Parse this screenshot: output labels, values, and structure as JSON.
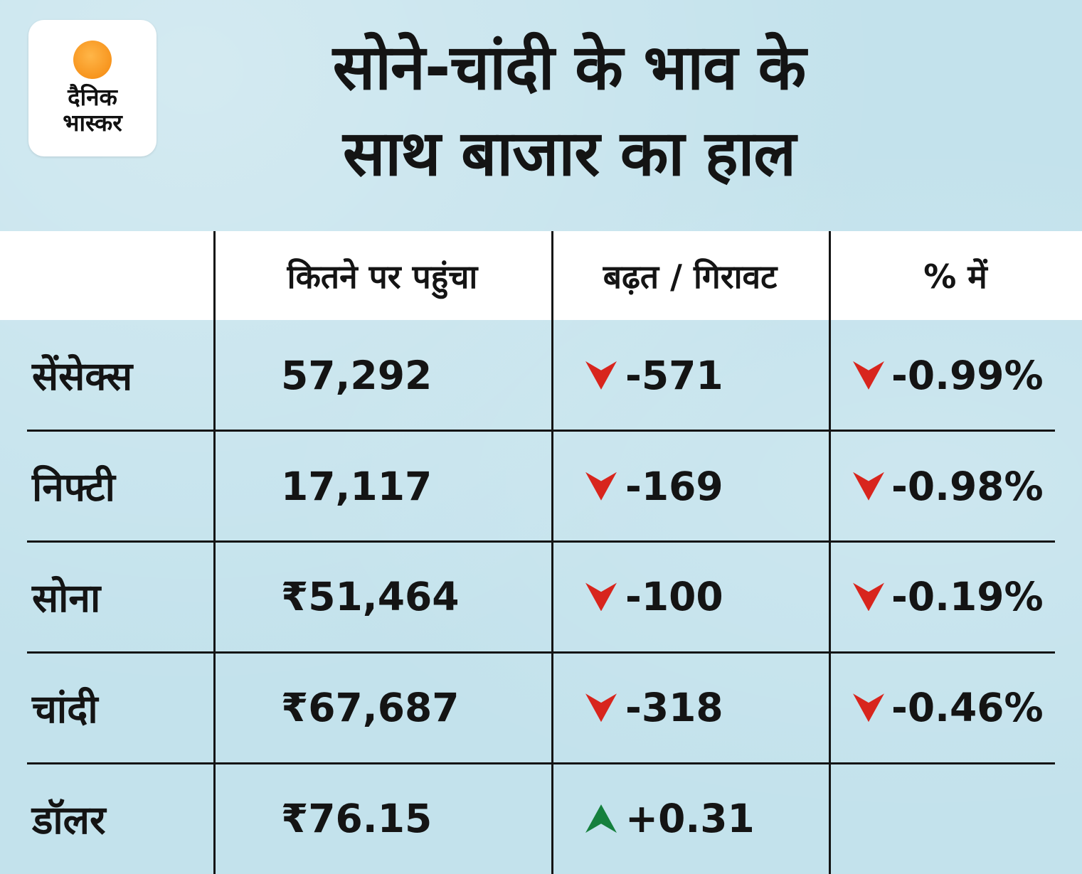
{
  "colors": {
    "bg": "#c3e2ec",
    "band": "#ffffff",
    "ink": "#141414",
    "red": "#d8251d",
    "green": "#15803d",
    "logo-orange": "#f7941d"
  },
  "logo": {
    "line1": "दैनिक",
    "line2": "भास्कर"
  },
  "title": {
    "line1": "सोने-चांदी के भाव के",
    "line2": "साथ बाजार का हाल"
  },
  "table": {
    "headers": [
      "",
      "कितने पर पहुंचा",
      "बढ़त / गिरावट",
      "% में"
    ],
    "rows": [
      {
        "label": "सेंसेक्स",
        "value": "57,292",
        "change": "-571",
        "change_dir": "down",
        "pct": "-0.99%",
        "pct_dir": "down"
      },
      {
        "label": "निफ्टी",
        "value": "17,117",
        "change": "-169",
        "change_dir": "down",
        "pct": "-0.98%",
        "pct_dir": "down"
      },
      {
        "label": "सोना",
        "value": "₹51,464",
        "change": "-100",
        "change_dir": "down",
        "pct": "-0.19%",
        "pct_dir": "down"
      },
      {
        "label": "चांदी",
        "value": "₹67,687",
        "change": "-318",
        "change_dir": "down",
        "pct": "-0.46%",
        "pct_dir": "down"
      },
      {
        "label": "डॉलर",
        "value": "₹76.15",
        "change": "+0.31",
        "change_dir": "up",
        "pct": "",
        "pct_dir": ""
      }
    ]
  },
  "chart_data": {
    "type": "table",
    "title": "सोने-चांदी के भाव के साथ बाजार का हाल",
    "columns": [
      "",
      "कितने पर पहुंचा",
      "बढ़त / गिरावट",
      "% में"
    ],
    "rows": [
      [
        "सेंसेक्स",
        "57,292",
        "▼ -571",
        "▼ -0.99%"
      ],
      [
        "निफ्टी",
        "17,117",
        "▼ -169",
        "▼ -0.98%"
      ],
      [
        "सोना",
        "₹51,464",
        "▼ -100",
        "▼ -0.19%"
      ],
      [
        "चांदी",
        "₹67,687",
        "▼ -318",
        "▼ -0.46%"
      ],
      [
        "डॉलर",
        "₹76.15",
        "▲ +0.31",
        ""
      ]
    ],
    "notes": "Red down chevrons indicate decline, green up chevron indicates gain"
  }
}
